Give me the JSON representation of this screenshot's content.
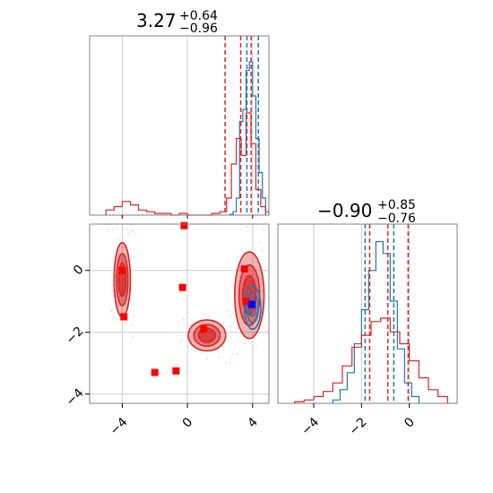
{
  "colors": {
    "red": "#d62728",
    "blue": "#1f77b4",
    "grid": "#cccccc",
    "frame": "#808080",
    "marker_red": "#ff0000",
    "marker_blue": "#0000ff"
  },
  "titles": {
    "p1": {
      "main": "3.27",
      "sup": "+0.64",
      "sub": "−0.96"
    },
    "p2": {
      "main": "−0.90",
      "sup": "+0.85",
      "sub": "−0.76"
    }
  },
  "chart_data": [
    {
      "type": "histogram",
      "panel": "top-left marginal of parameter 1",
      "xlim": [
        -6,
        5
      ],
      "xticks": [
        -4,
        0,
        4
      ],
      "series": [
        {
          "name": "",
          "color": "#1f77b4",
          "bins_x": [
            2.6,
            2.8,
            3.0,
            3.2,
            3.4,
            3.6,
            3.8,
            4.0,
            4.2,
            4.4,
            4.6,
            4.8,
            5.0
          ],
          "heights": [
            0.005,
            0.02,
            0.1,
            0.55,
            0.62,
            0.85,
            0.9,
            0.7,
            0.45,
            0.25,
            0.1,
            0.02
          ],
          "quantiles": [
            3.65,
            4.35
          ]
        },
        {
          "name": "",
          "color": "#d62728",
          "bins_x": [
            -5.0,
            -4.5,
            -4.0,
            -3.5,
            -3.0,
            -2.5,
            -2.0,
            -1.5,
            -1.0,
            -0.5,
            0.0,
            0.5,
            1.0,
            1.5,
            2.0,
            2.4,
            2.7,
            3.0,
            3.3,
            3.6,
            3.9,
            4.2,
            4.5,
            4.8
          ],
          "heights": [
            0.03,
            0.05,
            0.08,
            0.06,
            0.03,
            0.02,
            0.01,
            0.01,
            0.0,
            0.01,
            0.0,
            0.0,
            0.0,
            0.01,
            0.02,
            0.1,
            0.3,
            0.45,
            0.35,
            0.6,
            0.42,
            0.15,
            0.05
          ],
          "quantiles": [
            2.31,
            3.27,
            3.91
          ]
        }
      ]
    },
    {
      "type": "scatter",
      "panel": "2D joint of parameter 1 vs parameter 2",
      "xlim": [
        -6,
        5
      ],
      "ylim": [
        -4.3,
        1.5
      ],
      "xticks": [
        -4,
        0,
        4
      ],
      "yticks": [
        0,
        -2,
        -4
      ],
      "red_points": [
        [
          -4,
          0
        ],
        [
          -3.9,
          -1.5
        ],
        [
          -0.2,
          1.45
        ],
        [
          -0.3,
          -0.55
        ],
        [
          1.0,
          -1.9
        ],
        [
          3.5,
          0.05
        ],
        [
          3.6,
          -1.0
        ],
        [
          -2.0,
          -3.3
        ],
        [
          -0.7,
          -3.25
        ]
      ],
      "blue_points": [
        [
          3.95,
          -1.1
        ]
      ],
      "regions": [
        {
          "color": "#d62728",
          "center": [
            3.8,
            -0.8
          ],
          "extent": [
            1.8,
            2.8
          ]
        },
        {
          "color": "#d62728",
          "center": [
            -4.0,
            -0.3
          ],
          "extent": [
            1.0,
            2.4
          ]
        },
        {
          "color": "#d62728",
          "center": [
            1.2,
            -2.1
          ],
          "extent": [
            2.3,
            1.0
          ]
        },
        {
          "color": "#1f77b4",
          "center": [
            4.0,
            -1.2
          ],
          "extent": [
            1.0,
            1.4
          ]
        }
      ]
    },
    {
      "type": "histogram",
      "panel": "bottom-right marginal of parameter 2",
      "xlim": [
        -5.5,
        2.0
      ],
      "xticks": [
        -4,
        -2,
        0
      ],
      "series": [
        {
          "name": "",
          "color": "#1f77b4",
          "bins_x": [
            -3.2,
            -2.9,
            -2.6,
            -2.3,
            -2.0,
            -1.7,
            -1.4,
            -1.1,
            -0.8,
            -0.5,
            -0.2,
            0.1,
            0.4
          ],
          "heights": [
            0.02,
            0.08,
            0.18,
            0.35,
            0.55,
            0.78,
            0.95,
            0.88,
            0.6,
            0.32,
            0.12,
            0.04
          ],
          "quantiles": [
            -1.85,
            -0.65
          ]
        },
        {
          "name": "",
          "color": "#d62728",
          "bins_x": [
            -4.8,
            -4.4,
            -4.0,
            -3.6,
            -3.2,
            -2.8,
            -2.4,
            -2.0,
            -1.6,
            -1.2,
            -0.8,
            -0.4,
            0.0,
            0.4,
            0.8,
            1.2,
            1.6
          ],
          "heights": [
            0.01,
            0.02,
            0.04,
            0.07,
            0.12,
            0.22,
            0.33,
            0.4,
            0.48,
            0.5,
            0.42,
            0.35,
            0.25,
            0.15,
            0.08,
            0.04
          ],
          "quantiles": [
            -1.66,
            -0.9,
            -0.05
          ]
        }
      ]
    }
  ]
}
